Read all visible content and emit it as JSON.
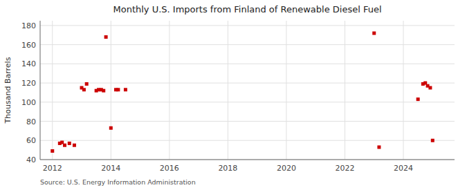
{
  "chart_data": {
    "type": "scatter",
    "title": "Monthly U.S. Imports from Finland of Renewable Diesel Fuel",
    "ylabel": "Thousand Barrels",
    "source": "Source: U.S. Energy Information Administration",
    "color": "#cc0000",
    "marker": "square",
    "grid": true,
    "xlim": [
      2011.58,
      2025.75
    ],
    "ylim": [
      40,
      185
    ],
    "xticks": [
      2012,
      2014,
      2016,
      2018,
      2020,
      2022,
      2024
    ],
    "yticks": [
      40,
      60,
      80,
      100,
      120,
      140,
      160,
      180
    ],
    "x": [
      2012.0,
      2012.25,
      2012.33,
      2012.42,
      2012.58,
      2012.75,
      2013.0,
      2013.08,
      2013.17,
      2013.5,
      2013.58,
      2013.67,
      2013.75,
      2013.83,
      2014.0,
      2014.17,
      2014.25,
      2014.5,
      2023.0,
      2023.17,
      2024.5,
      2024.67,
      2024.75,
      2024.83,
      2024.92,
      2025.0
    ],
    "values": [
      49,
      57,
      58,
      55,
      57,
      55,
      115,
      113,
      119,
      112,
      113,
      113,
      112,
      168,
      73,
      113,
      113,
      113,
      172,
      53,
      103,
      119,
      120,
      117,
      115,
      60
    ]
  }
}
